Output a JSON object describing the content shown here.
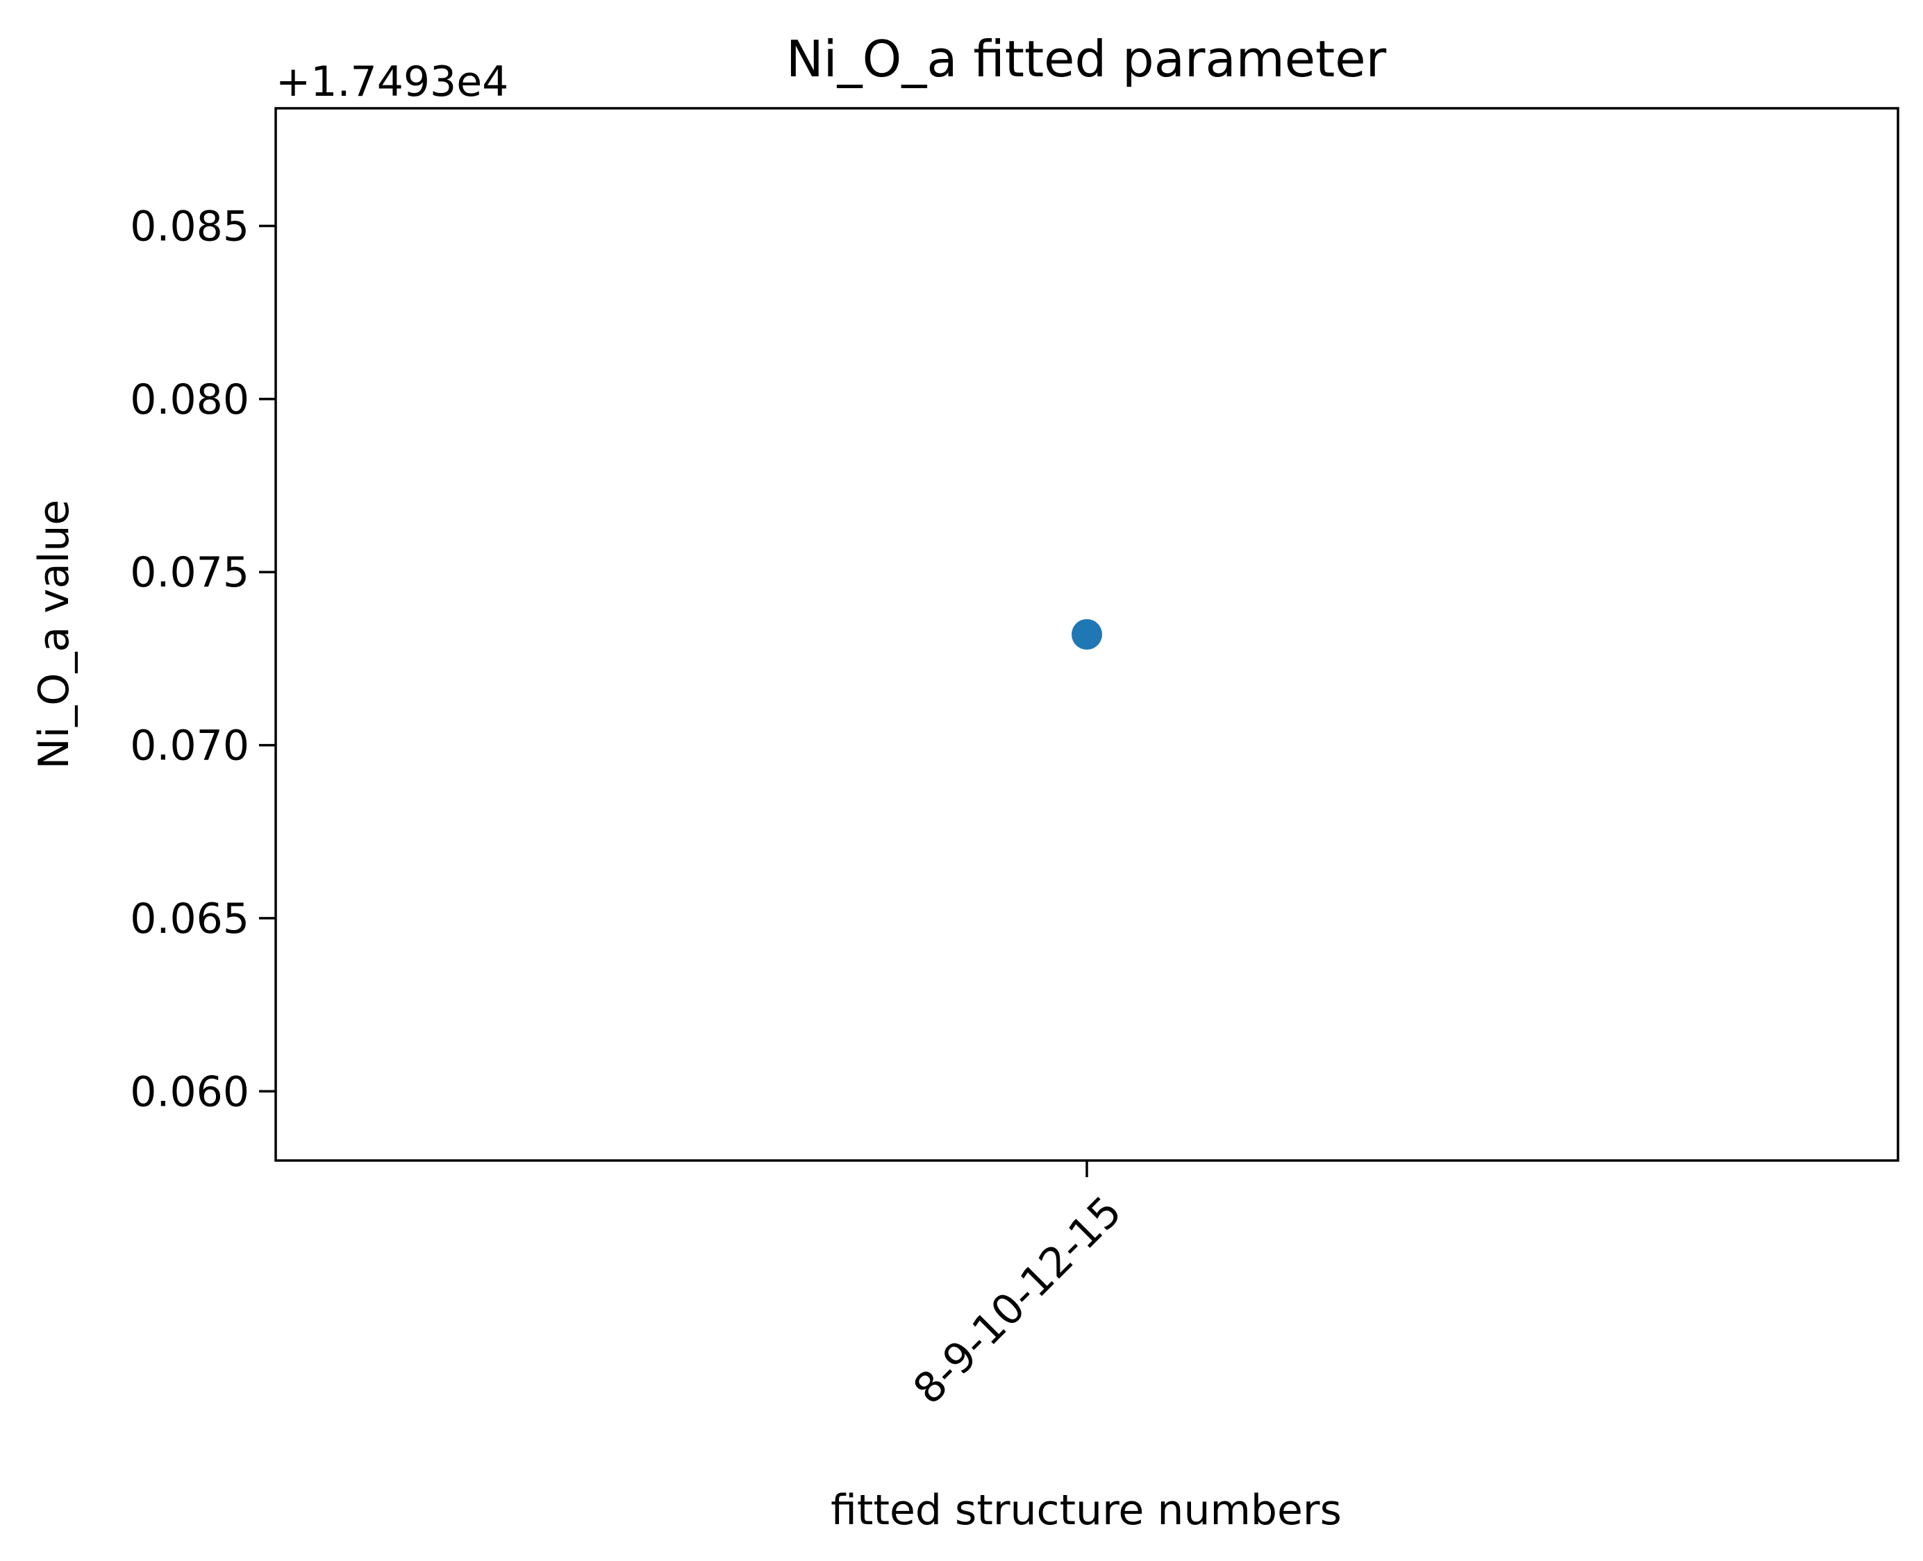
{
  "chart_data": {
    "type": "scatter",
    "title": "Ni_O_a fitted parameter",
    "xlabel": "fitted structure numbers",
    "ylabel": "Ni_O_a value",
    "y_offset_label": "+1.7493e4",
    "y_offset": 17493,
    "categories": [
      "8-9-10-12-15"
    ],
    "series": [
      {
        "values": [
          17493.0732
        ]
      }
    ],
    "ylim": [
      17493.058,
      17493.0884
    ],
    "yticks": [
      0.06,
      0.065,
      0.07,
      0.075,
      0.08,
      0.085
    ],
    "ytick_labels": [
      "0.060",
      "0.065",
      "0.070",
      "0.075",
      "0.080",
      "0.085"
    ],
    "grid": false,
    "legend": false,
    "colors": {
      "marker": "#1f77b4",
      "axes": "#000000",
      "background": "#ffffff"
    }
  }
}
